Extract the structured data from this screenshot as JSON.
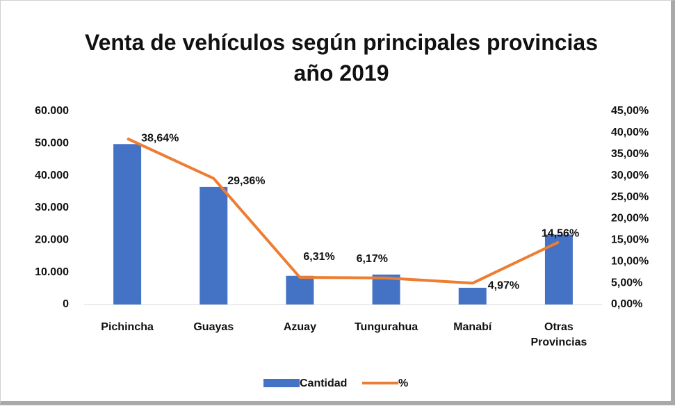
{
  "chart_data": {
    "type": "bar_line",
    "title": "Venta de vehículos según principales provincias año 2019",
    "categories": [
      "Pichincha",
      "Guayas",
      "Azuay",
      "Tungurahua",
      "Manabí",
      "Otras Provincias"
    ],
    "series": [
      {
        "name": "Cantidad",
        "type": "bar",
        "color": "#4472c4",
        "values": [
          49800,
          36500,
          8900,
          9300,
          5200,
          21700
        ]
      },
      {
        "name": "%",
        "type": "line",
        "axis": "y2",
        "color": "#ed7d31",
        "values": [
          38.64,
          29.36,
          6.31,
          6.17,
          4.97,
          14.56
        ],
        "value_labels": [
          "38,64%",
          "29,36%",
          "6,31%",
          "6,17%",
          "4,97%",
          "14,56%"
        ]
      }
    ],
    "ylim": [
      0,
      60000
    ],
    "yticks": [
      0,
      {
        "value": 10000,
        "label": "10.000"
      },
      {
        "value": 20000,
        "label": "20.000"
      },
      {
        "value": 30000,
        "label": "30.000"
      },
      {
        "value": 40000,
        "label": "40.000"
      },
      {
        "value": 50000,
        "label": "50.000"
      },
      {
        "value": 60000,
        "label": "60.000"
      }
    ],
    "y2lim": [
      0,
      45
    ],
    "y2ticks": [
      {
        "value": 0,
        "label": "0,00%"
      },
      {
        "value": 5,
        "label": "5,00%"
      },
      {
        "value": 10,
        "label": "10,00%"
      },
      {
        "value": 15,
        "label": "15,00%"
      },
      {
        "value": 20,
        "label": "20,00%"
      },
      {
        "value": 25,
        "label": "25,00%"
      },
      {
        "value": 30,
        "label": "30,00%"
      },
      {
        "value": 35,
        "label": "35,00%"
      },
      {
        "value": 40,
        "label": "40,00%"
      },
      {
        "value": 45,
        "label": "45,00%"
      }
    ],
    "grid": false,
    "legend": "bottom"
  }
}
